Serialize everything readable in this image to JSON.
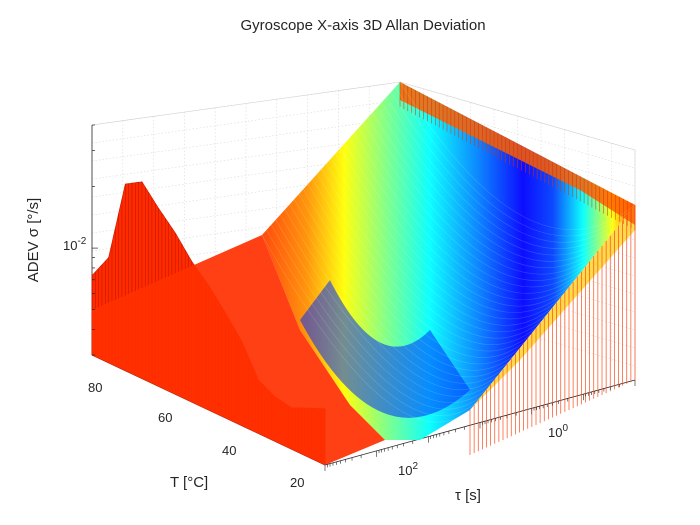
{
  "chart_data": {
    "type": "surface",
    "title": "Gyroscope X-axis 3D Allan Deviation",
    "xlabel": "τ [s]",
    "ylabel": "T [°C]",
    "zlabel": "ADEV σ [°/s]",
    "x_scale": "log",
    "z_scale": "log",
    "xlim": [
      0.01,
      10000
    ],
    "ylim": [
      20,
      90
    ],
    "x_ticks": [
      {
        "base": "10",
        "exp": "0",
        "value": 1
      },
      {
        "base": "10",
        "exp": "2",
        "value": 100
      }
    ],
    "y_ticks": [
      {
        "label": "20",
        "value": 20
      },
      {
        "label": "40",
        "value": 40
      },
      {
        "label": "60",
        "value": 60
      },
      {
        "label": "80",
        "value": 80
      }
    ],
    "z_ticks": [
      {
        "base": "10",
        "exp": "-2",
        "value": 0.01
      }
    ],
    "grid": true,
    "colormap": "jet",
    "front_profile_temperature": [
      20,
      25,
      30,
      35,
      40,
      45,
      50,
      55,
      60,
      65,
      70,
      75,
      80,
      85,
      90
    ],
    "front_profile_adev_peak": [
      0.006,
      0.0055,
      0.005,
      0.0052,
      0.0058,
      0.0085,
      0.011,
      0.014,
      0.017,
      0.022,
      0.027,
      0.034,
      0.03,
      0.011,
      0.008
    ],
    "curve_min_adev": 0.004,
    "curve_min_tau": 100
  }
}
